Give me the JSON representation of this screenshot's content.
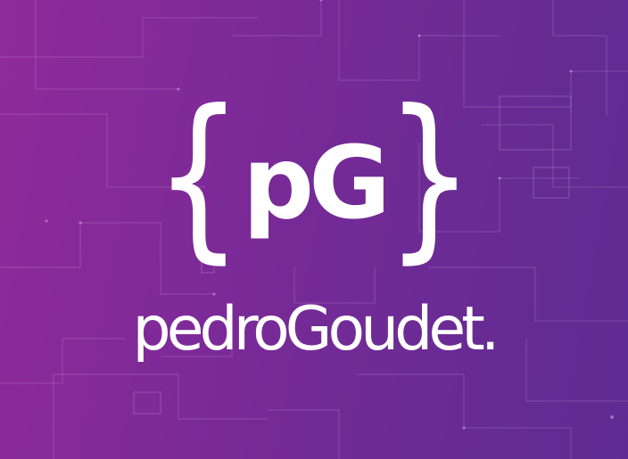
{
  "background": {
    "gradient_start": "#8f2a9a",
    "gradient_end": "#5f2b92",
    "pattern": "circuit-lines"
  },
  "logo": {
    "brace_open": "{",
    "monogram": "pG",
    "brace_close": "}",
    "color": "#ffffff"
  },
  "wordmark": {
    "text": "pedroGoudet."
  }
}
